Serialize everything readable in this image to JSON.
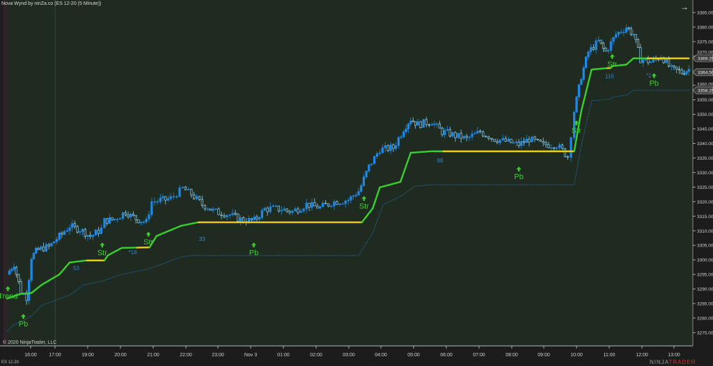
{
  "header": {
    "title": "Nova Wynd by ninZa.co (ES 12-20 (5 Minute))",
    "instrument": "ES 12-20",
    "copyright": "© 2020 NinjaTrader, LLC",
    "logo_left": "NINJA",
    "logo_right": "TRADER"
  },
  "colors": {
    "background": "#1f2b20",
    "axis_bg": "#1c1c1c",
    "candle_up": "#1e88e5",
    "candle_down": "#8fd3f5",
    "trend_up": "#39d12c",
    "trend_flat": "#f2cf00",
    "lower_band": "#2a7fc9",
    "signal": "#3ccf2f",
    "count_label": "#2a86d8"
  },
  "chart_data": {
    "type": "candlestick",
    "title": "Nova Wynd by ninZa.co (ES 12-20 (5 Minute))",
    "xlabel": "",
    "ylabel": "",
    "ylim": [
      3272,
      3389
    ],
    "x_ticks": [
      "16:00",
      "17:00",
      "19:00",
      "20:00",
      "21:00",
      "22:00",
      "23:00",
      "Nov 3",
      "01:00",
      "02:00",
      "03:00",
      "04:00",
      "05:00",
      "06:00",
      "07:00",
      "08:00",
      "09:00",
      "10:00",
      "11:00",
      "12:00",
      "13:00"
    ],
    "y_ticks": [
      3385,
      3380,
      3375,
      3370,
      3360,
      3355,
      3350,
      3345,
      3340,
      3335,
      3330,
      3325,
      3320,
      3315,
      3310,
      3305,
      3300,
      3295,
      3290,
      3285,
      3280,
      3275
    ],
    "price_tags": [
      {
        "value": "3369.25"
      },
      {
        "value": "3364.50"
      },
      {
        "value": "3358.25"
      }
    ],
    "price_path": [
      [
        "15:02",
        3295
      ],
      [
        "15:19",
        3298.5
      ],
      [
        "15:36",
        3289
      ],
      [
        "15:50",
        3287
      ],
      [
        "16:02",
        3301
      ],
      [
        "16:19",
        3303.5
      ],
      [
        "16:45",
        3304.5
      ],
      [
        "18:08",
        3308
      ],
      [
        "18:27",
        3311.5
      ],
      [
        "18:46",
        3310.5
      ],
      [
        "19:05",
        3308
      ],
      [
        "19:25",
        3310.5
      ],
      [
        "19:31",
        3313.5
      ],
      [
        "19:50",
        3314
      ],
      [
        "20:10",
        3316.5
      ],
      [
        "20:29",
        3314
      ],
      [
        "20:48",
        3313
      ],
      [
        "20:58",
        3320
      ],
      [
        "21:14",
        3320.5
      ],
      [
        "21:33",
        3321
      ],
      [
        "21:55",
        3324.5
      ],
      [
        "22:11",
        3322.5
      ],
      [
        "22:31",
        3319
      ],
      [
        "22:56",
        3316.5
      ],
      [
        "23:22",
        3315.5
      ],
      [
        "23:47",
        3313.5
      ],
      [
        "00:07",
        3313.5
      ],
      [
        "00:26",
        3317.5
      ],
      [
        "00:52",
        3317.5
      ],
      [
        "01:17",
        3316.5
      ],
      [
        "01:43",
        3319
      ],
      [
        "02:08",
        3318
      ],
      [
        "02:34",
        3320
      ],
      [
        "03:00",
        3320.5
      ],
      [
        "03:19",
        3323.5
      ],
      [
        "03:38",
        3332
      ],
      [
        "03:58",
        3338
      ],
      [
        "04:23",
        3338.5
      ],
      [
        "04:42",
        3345
      ],
      [
        "04:55",
        3348.5
      ],
      [
        "05:08",
        3346.5
      ],
      [
        "05:34",
        3347.5
      ],
      [
        "05:53",
        3344
      ],
      [
        "06:12",
        3343
      ],
      [
        "06:38",
        3341.5
      ],
      [
        "07:03",
        3344
      ],
      [
        "07:29",
        3341.5
      ],
      [
        "07:55",
        3340.5
      ],
      [
        "08:14",
        3339.5
      ],
      [
        "08:33",
        3341.5
      ],
      [
        "08:59",
        3339.5
      ],
      [
        "09:24",
        3339.5
      ],
      [
        "09:44",
        3335.5
      ],
      [
        "09:56",
        3351
      ],
      [
        "10:09",
        3363
      ],
      [
        "10:22",
        3371.5
      ],
      [
        "10:41",
        3375
      ],
      [
        "10:54",
        3371.5
      ],
      [
        "11:13",
        3377.5
      ],
      [
        "11:32",
        3380
      ],
      [
        "11:45",
        3377.5
      ],
      [
        "11:58",
        3369
      ],
      [
        "12:17",
        3368
      ],
      [
        "12:36",
        3370
      ],
      [
        "12:55",
        3365.5
      ],
      [
        "13:14",
        3364.5
      ],
      [
        "13:27",
        3365.5
      ]
    ],
    "trend_line": [
      [
        "15:02",
        3286.7,
        "up"
      ],
      [
        "15:36",
        3288.3,
        "up"
      ],
      [
        "16:02",
        3288.6,
        "up"
      ],
      [
        "16:27",
        3291.4,
        "up"
      ],
      [
        "18:08",
        3295,
        "up"
      ],
      [
        "18:27",
        3299.1,
        "up"
      ],
      [
        "18:59",
        3299.8,
        "flat"
      ],
      [
        "19:31",
        3299.8,
        "up"
      ],
      [
        "19:37",
        3301.5,
        "up"
      ],
      [
        "20:03",
        3304.1,
        "up"
      ],
      [
        "20:31",
        3304.2,
        "flat"
      ],
      [
        "20:54",
        3304.3,
        "up"
      ],
      [
        "21:07",
        3308.2,
        "up"
      ],
      [
        "21:52",
        3311.7,
        "up"
      ],
      [
        "22:24",
        3312.9,
        "flat"
      ],
      [
        "03:25",
        3312.9,
        "up"
      ],
      [
        "03:45",
        3317.7,
        "up"
      ],
      [
        "03:58",
        3324.9,
        "up"
      ],
      [
        "04:36",
        3326.8,
        "up"
      ],
      [
        "04:55",
        3336.8,
        "up"
      ],
      [
        "05:34",
        3337.3,
        "up"
      ],
      [
        "05:55",
        3337.3,
        "flat"
      ],
      [
        "09:56",
        3337.3,
        "up"
      ],
      [
        "10:09",
        3351.1,
        "up"
      ],
      [
        "10:28",
        3365.4,
        "up"
      ],
      [
        "10:57",
        3365.9,
        "flat"
      ],
      [
        "11:03",
        3365.9,
        "up"
      ],
      [
        "11:07",
        3366.6,
        "up"
      ],
      [
        "11:32",
        3367.1,
        "up"
      ],
      [
        "11:45",
        3369.25,
        "up"
      ],
      [
        "12:11",
        3369.25,
        "flat"
      ],
      [
        "13:27",
        3369.25,
        "flat"
      ]
    ],
    "lower_band": [
      [
        "15:02",
        3275.5
      ],
      [
        "15:19",
        3277.6
      ],
      [
        "16:02",
        3280.7
      ],
      [
        "16:27",
        3284.3
      ],
      [
        "18:27",
        3287.9
      ],
      [
        "18:53",
        3291.4
      ],
      [
        "19:25",
        3292.6
      ],
      [
        "20:03",
        3295
      ],
      [
        "20:48",
        3296.7
      ],
      [
        "21:01",
        3297.4
      ],
      [
        "21:52",
        3301
      ],
      [
        "22:11",
        3301.5
      ],
      [
        "03:19",
        3301.5
      ],
      [
        "03:45",
        3309.3
      ],
      [
        "04:04",
        3318.9
      ],
      [
        "04:42",
        3322.5
      ],
      [
        "05:02",
        3325.3
      ],
      [
        "05:34",
        3325.8
      ],
      [
        "09:56",
        3325.8
      ],
      [
        "10:09",
        3339.2
      ],
      [
        "10:28",
        3354.7
      ],
      [
        "11:01",
        3355.2
      ],
      [
        "11:07",
        3355.9
      ],
      [
        "11:32",
        3356.6
      ],
      [
        "11:45",
        3358.25
      ],
      [
        "13:27",
        3358.25
      ]
    ],
    "signals": [
      {
        "text": "Trend",
        "time": "15:04",
        "price": 3289.5,
        "arrow": true
      },
      {
        "text": "Pb",
        "time": "15:42",
        "price": 3280,
        "arrow": true
      },
      {
        "text": "Str",
        "time": "19:27",
        "price": 3304.5,
        "arrow": true
      },
      {
        "text": "Str",
        "time": "20:52",
        "price": 3308.2,
        "arrow": true
      },
      {
        "text": "Pb",
        "time": "00:06",
        "price": 3304.5,
        "arrow": true
      },
      {
        "text": "Str",
        "time": "03:29",
        "price": 3320.5,
        "arrow": true
      },
      {
        "text": "Pb",
        "time": "08:14",
        "price": 3330.6,
        "arrow": true
      },
      {
        "text": "Str",
        "time": "10:00",
        "price": 3346.5,
        "arrow": true
      },
      {
        "text": "Str",
        "time": "11:06",
        "price": 3369.3,
        "arrow": true
      },
      {
        "text": "Pb",
        "time": "12:23",
        "price": 3362.7,
        "arrow": true
      }
    ],
    "counts": [
      {
        "text": "53",
        "time": "18:39",
        "price": 3296.5
      },
      {
        "text": "*18",
        "time": "20:27",
        "price": 3301.5
      },
      {
        "text": "33",
        "time": "22:31",
        "price": 3306.5
      },
      {
        "text": "98",
        "time": "05:49",
        "price": 3333.5
      },
      {
        "text": "116",
        "time": "11:01",
        "price": 3362.5
      },
      {
        "text": "*1",
        "time": "12:14",
        "price": 3362.2
      }
    ]
  }
}
